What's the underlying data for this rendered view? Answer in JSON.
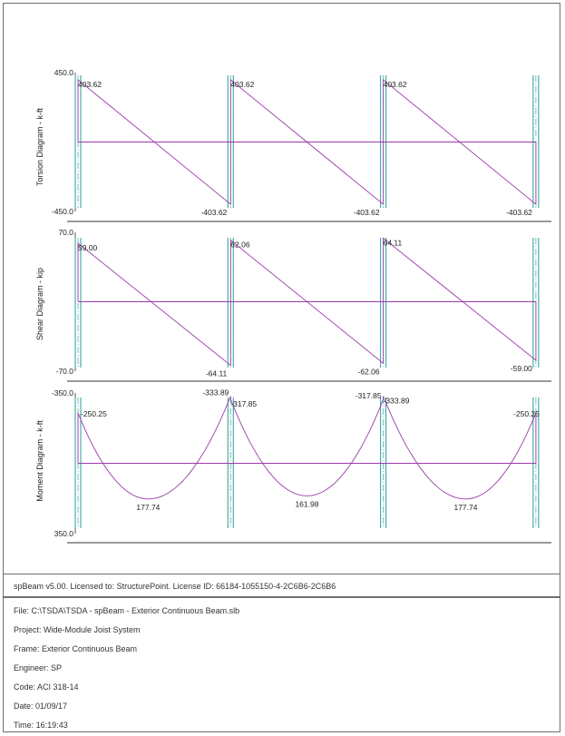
{
  "colors": {
    "diagram_line": "#9b3aa8",
    "support_line": "#3aa6a0",
    "support_centerline": "#3aa6a0",
    "axis": "#333333",
    "text": "#222222"
  },
  "chart_data": [
    {
      "type": "line",
      "ylabel": "Torsion Diagram - k-ft",
      "ylim": [
        -450.0,
        450.0
      ],
      "ytick_labels": [
        "450.0",
        "-450.0"
      ],
      "series": [
        {
          "values": [
            [
              0,
              403.62
            ],
            [
              1,
              -403.62
            ],
            [
              1,
              403.62
            ],
            [
              2,
              -403.62
            ],
            [
              2,
              403.62
            ],
            [
              3,
              -403.62
            ]
          ]
        }
      ],
      "annotations": [
        {
          "text": "403.62",
          "x": 0,
          "y": 403.62,
          "pos": "top-right"
        },
        {
          "text": "-403.62",
          "x": 1,
          "y": -403.62,
          "pos": "bottom-left"
        },
        {
          "text": "403.62",
          "x": 1,
          "y": 403.62,
          "pos": "top-right"
        },
        {
          "text": "-403.62",
          "x": 2,
          "y": -403.62,
          "pos": "bottom-left"
        },
        {
          "text": "403.62",
          "x": 2,
          "y": 403.62,
          "pos": "top-right"
        },
        {
          "text": "-403.62",
          "x": 3,
          "y": -403.62,
          "pos": "bottom-left"
        }
      ]
    },
    {
      "type": "line",
      "ylabel": "Shear Diagram - kip",
      "ylim": [
        -70.0,
        70.0
      ],
      "ytick_labels": [
        "70.0",
        "-70.0"
      ],
      "series": [
        {
          "values": [
            [
              0,
              59.0
            ],
            [
              1,
              -64.11
            ],
            [
              1,
              62.06
            ],
            [
              2,
              -62.06
            ],
            [
              2,
              64.11
            ],
            [
              3,
              -59.0
            ]
          ]
        }
      ],
      "annotations": [
        {
          "text": "59.00",
          "x": 0,
          "y": 59.0,
          "pos": "top-right"
        },
        {
          "text": "-64.11",
          "x": 1,
          "y": -64.11,
          "pos": "bottom-left"
        },
        {
          "text": "62.06",
          "x": 1,
          "y": 62.06,
          "pos": "top-right"
        },
        {
          "text": "-62.06",
          "x": 2,
          "y": -62.06,
          "pos": "bottom-left"
        },
        {
          "text": "64.11",
          "x": 2,
          "y": 64.11,
          "pos": "top-right"
        },
        {
          "text": "-59.00",
          "x": 3,
          "y": -59.0,
          "pos": "bottom-left"
        }
      ]
    },
    {
      "type": "line",
      "ylabel": "Moment Diagram - k-ft",
      "ylim": [
        -350.0,
        350.0
      ],
      "ytick_labels": [
        "-350.0",
        "350.0"
      ],
      "inverted_y": true,
      "spans": [
        {
          "start": 0,
          "end": 1,
          "m_left": -250.25,
          "m_right": -333.89,
          "m_mid_max": 177.74,
          "mid_at": 0.46
        },
        {
          "start": 1,
          "end": 2,
          "m_left": -317.85,
          "m_right": -317.85,
          "m_mid_max": 161.98,
          "mid_at": 0.5
        },
        {
          "start": 2,
          "end": 3,
          "m_left": -333.89,
          "m_right": -250.25,
          "m_mid_max": 177.74,
          "mid_at": 0.54
        }
      ],
      "annotations": [
        {
          "text": "-250.25",
          "x": 0,
          "y": -250.25,
          "pos": "right"
        },
        {
          "text": "-333.89",
          "x": 1,
          "y": -333.89,
          "pos": "top-left"
        },
        {
          "text": "-317.85",
          "x": 1,
          "y": -317.85,
          "pos": "top-right"
        },
        {
          "text": "177.74",
          "x": 0.46,
          "y": 177.74,
          "pos": "below"
        },
        {
          "text": "161.98",
          "x": 1.5,
          "y": 161.98,
          "pos": "below"
        },
        {
          "text": "-317.85",
          "x": 2,
          "y": -317.85,
          "pos": "top-left"
        },
        {
          "text": "-333.89",
          "x": 2,
          "y": -333.89,
          "pos": "top-right"
        },
        {
          "text": "177.74",
          "x": 2.54,
          "y": 177.74,
          "pos": "below"
        },
        {
          "text": "-250.25",
          "x": 3,
          "y": -250.25,
          "pos": "left"
        }
      ]
    }
  ],
  "footer": {
    "license": "spBeam v5.00. Licensed to: StructurePoint. License ID: 66184-1055150-4-2C6B6-2C6B6",
    "info": [
      "File: C:\\TSDA\\TSDA - spBeam - Exterior Continuous Beam.slb",
      "Project: Wide-Module Joist System",
      "Frame: Exterior Continuous Beam",
      "Engineer: SP",
      "Code: ACI 318-14",
      "Date: 01/09/17",
      "Time: 16:19:43"
    ]
  }
}
